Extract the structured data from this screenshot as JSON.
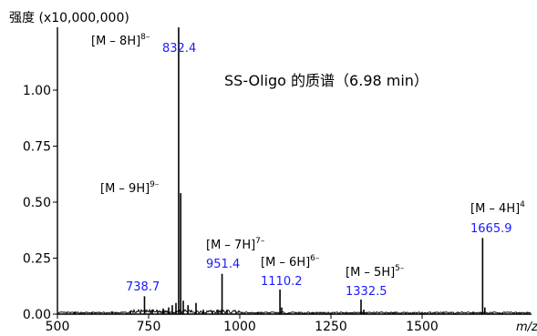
{
  "chart_data": {
    "type": "line",
    "title": "SS-Oligo 的质谱（6.98 min）",
    "ylabel": "强度 (x10,000,000)",
    "xlabel": "m/z",
    "xlim": [
      500,
      1800
    ],
    "ylim": [
      0,
      1.25
    ],
    "x_ticks": [
      500,
      750,
      1000,
      1250,
      1500
    ],
    "x_tick_labels": [
      "500",
      "750",
      "1000",
      "1250",
      "1500"
    ],
    "y_ticks": [
      0,
      0.25,
      0.5,
      0.75,
      1.0
    ],
    "y_tick_labels": [
      "0.00",
      "0.25",
      "0.50",
      "0.75",
      "1.00"
    ],
    "grid": false,
    "peaks": [
      {
        "mz": 738.7,
        "intensity": 0.08,
        "mz_label": "738.7",
        "ion": "",
        "charge_sup": ""
      },
      {
        "mz": 832.4,
        "intensity": 1.28,
        "mz_label": "832.4",
        "ion": "[M – 8H]",
        "charge_sup": "8–"
      },
      {
        "mz": 838.0,
        "intensity": 0.54,
        "mz_label": "",
        "ion": "[M – 9H]",
        "charge_sup": "9–"
      },
      {
        "mz": 951.4,
        "intensity": 0.18,
        "mz_label": "951.4",
        "ion": "[M – 7H]",
        "charge_sup": "7–"
      },
      {
        "mz": 1110.2,
        "intensity": 0.11,
        "mz_label": "1110.2",
        "ion": "[M – 6H]",
        "charge_sup": "6–"
      },
      {
        "mz": 1332.5,
        "intensity": 0.065,
        "mz_label": "1332.5",
        "ion": "[M – 5H]",
        "charge_sup": "5–"
      },
      {
        "mz": 1665.9,
        "intensity": 0.34,
        "mz_label": "1665.9",
        "ion": "[M – 4H]",
        "charge_sup": "4"
      }
    ],
    "minor_peaks": [
      {
        "mz": 548,
        "intensity": 0.01
      },
      {
        "mz": 595,
        "intensity": 0.008
      },
      {
        "mz": 650,
        "intensity": 0.012
      },
      {
        "mz": 700,
        "intensity": 0.015
      },
      {
        "mz": 760,
        "intensity": 0.02
      },
      {
        "mz": 775,
        "intensity": 0.015
      },
      {
        "mz": 790,
        "intensity": 0.025
      },
      {
        "mz": 805,
        "intensity": 0.03
      },
      {
        "mz": 815,
        "intensity": 0.04
      },
      {
        "mz": 825,
        "intensity": 0.05
      },
      {
        "mz": 845,
        "intensity": 0.06
      },
      {
        "mz": 858,
        "intensity": 0.04
      },
      {
        "mz": 880,
        "intensity": 0.05
      },
      {
        "mz": 900,
        "intensity": 0.02
      },
      {
        "mz": 925,
        "intensity": 0.015
      },
      {
        "mz": 940,
        "intensity": 0.02
      },
      {
        "mz": 965,
        "intensity": 0.02
      },
      {
        "mz": 1050,
        "intensity": 0.01
      },
      {
        "mz": 1115,
        "intensity": 0.03
      },
      {
        "mz": 1200,
        "intensity": 0.008
      },
      {
        "mz": 1340,
        "intensity": 0.02
      },
      {
        "mz": 1420,
        "intensity": 0.008
      },
      {
        "mz": 1560,
        "intensity": 0.006
      },
      {
        "mz": 1640,
        "intensity": 0.01
      },
      {
        "mz": 1672,
        "intensity": 0.03
      },
      {
        "mz": 1720,
        "intensity": 0.005
      }
    ]
  }
}
